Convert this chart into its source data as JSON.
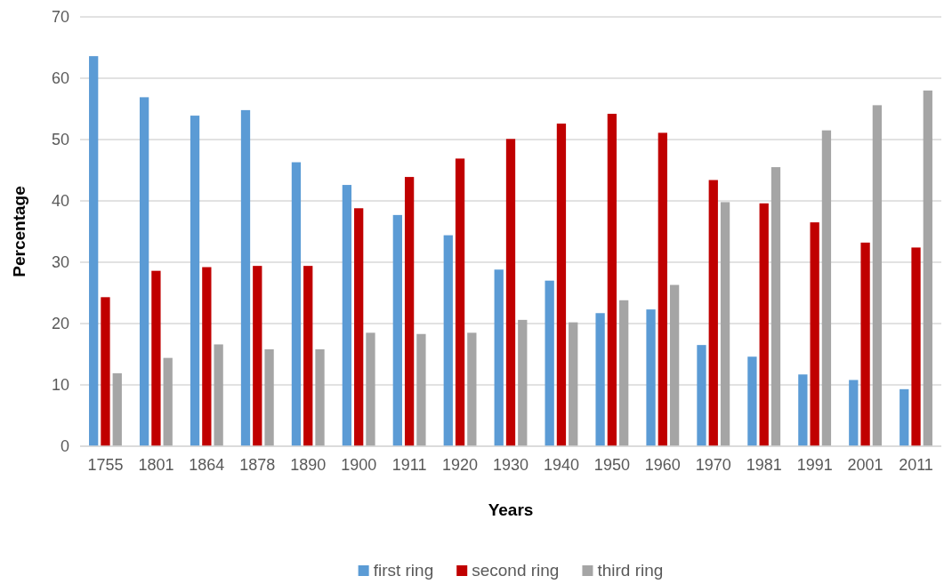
{
  "chart_data": {
    "type": "bar",
    "xlabel": "Years",
    "ylabel": "Percentage",
    "categories": [
      "1755",
      "1801",
      "1864",
      "1878",
      "1890",
      "1900",
      "1911",
      "1920",
      "1930",
      "1940",
      "1950",
      "1960",
      "1970",
      "1981",
      "1991",
      "2001",
      "2011"
    ],
    "series": [
      {
        "name": "first ring",
        "color": "#5b9bd5",
        "values": [
          63.6,
          56.9,
          53.9,
          54.8,
          46.3,
          42.6,
          37.7,
          34.4,
          28.8,
          27.0,
          21.7,
          22.3,
          16.5,
          14.6,
          11.7,
          10.8,
          9.3
        ]
      },
      {
        "name": "second ring",
        "color": "#c00000",
        "values": [
          24.3,
          28.6,
          29.2,
          29.4,
          29.4,
          38.8,
          43.9,
          46.9,
          50.1,
          52.6,
          54.2,
          51.1,
          43.4,
          39.6,
          36.5,
          33.2,
          32.4
        ]
      },
      {
        "name": "third ring",
        "color": "#a5a5a5",
        "values": [
          11.9,
          14.4,
          16.6,
          15.8,
          15.8,
          18.5,
          18.3,
          18.5,
          20.6,
          20.2,
          23.8,
          26.3,
          39.8,
          45.5,
          51.5,
          55.6,
          58.0
        ]
      }
    ],
    "ylim": [
      0,
      70
    ],
    "yticks": [
      0,
      10,
      20,
      30,
      40,
      50,
      60,
      70
    ],
    "grid": "y",
    "legend": "bottom"
  }
}
